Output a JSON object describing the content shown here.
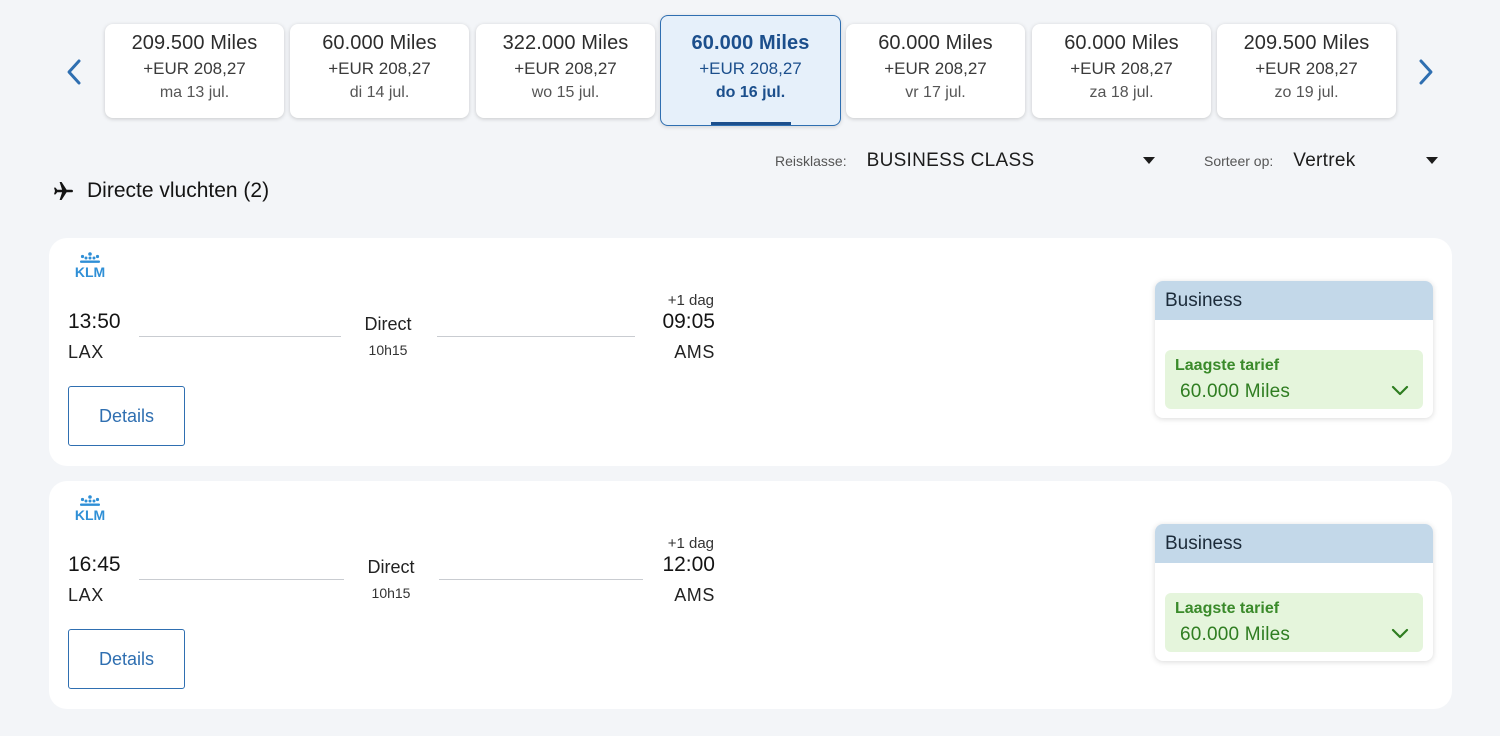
{
  "carousel": {
    "prev_icon": "chevron-left-icon",
    "next_icon": "chevron-right-icon",
    "accent": "#2f6fb1",
    "dates": [
      {
        "miles": "209.500 Miles",
        "eur": "+EUR 208,27",
        "day": "ma 13 jul."
      },
      {
        "miles": "60.000 Miles",
        "eur": "+EUR 208,27",
        "day": "di 14 jul."
      },
      {
        "miles": "322.000 Miles",
        "eur": "+EUR 208,27",
        "day": "wo 15 jul."
      },
      {
        "miles": "60.000 Miles",
        "eur": "+EUR 208,27",
        "day": "do 16 jul.",
        "selected": true
      },
      {
        "miles": "60.000 Miles",
        "eur": "+EUR 208,27",
        "day": "vr 17 jul."
      },
      {
        "miles": "60.000 Miles",
        "eur": "+EUR 208,27",
        "day": "za 18 jul."
      },
      {
        "miles": "209.500 Miles",
        "eur": "+EUR 208,27",
        "day": "zo 19 jul."
      }
    ]
  },
  "filters": {
    "class_label": "Reisklasse:",
    "class_value": "BUSINESS CLASS",
    "sort_label": "Sorteer op:",
    "sort_value": "Vertrek"
  },
  "section": {
    "icon": "plane-icon",
    "title": "Directe vluchten (2)"
  },
  "flights": [
    {
      "airline_logo": "KLM",
      "dep_time": "13:50",
      "dep_code": "LAX",
      "stops": "Direct",
      "duration": "10h15",
      "plus_day": "+1 dag",
      "arr_time": "09:05",
      "arr_code": "AMS",
      "details_label": "Details",
      "fare_class": "Business",
      "fare_label": "Laagste tarief",
      "fare_value": "60.000 Miles"
    },
    {
      "airline_logo": "KLM",
      "dep_time": "16:45",
      "dep_code": "LAX",
      "stops": "Direct",
      "duration": "10h15",
      "plus_day": "+1 dag",
      "arr_time": "12:00",
      "arr_code": "AMS",
      "details_label": "Details",
      "fare_class": "Business",
      "fare_label": "Laagste tarief",
      "fare_value": "60.000 Miles"
    }
  ]
}
